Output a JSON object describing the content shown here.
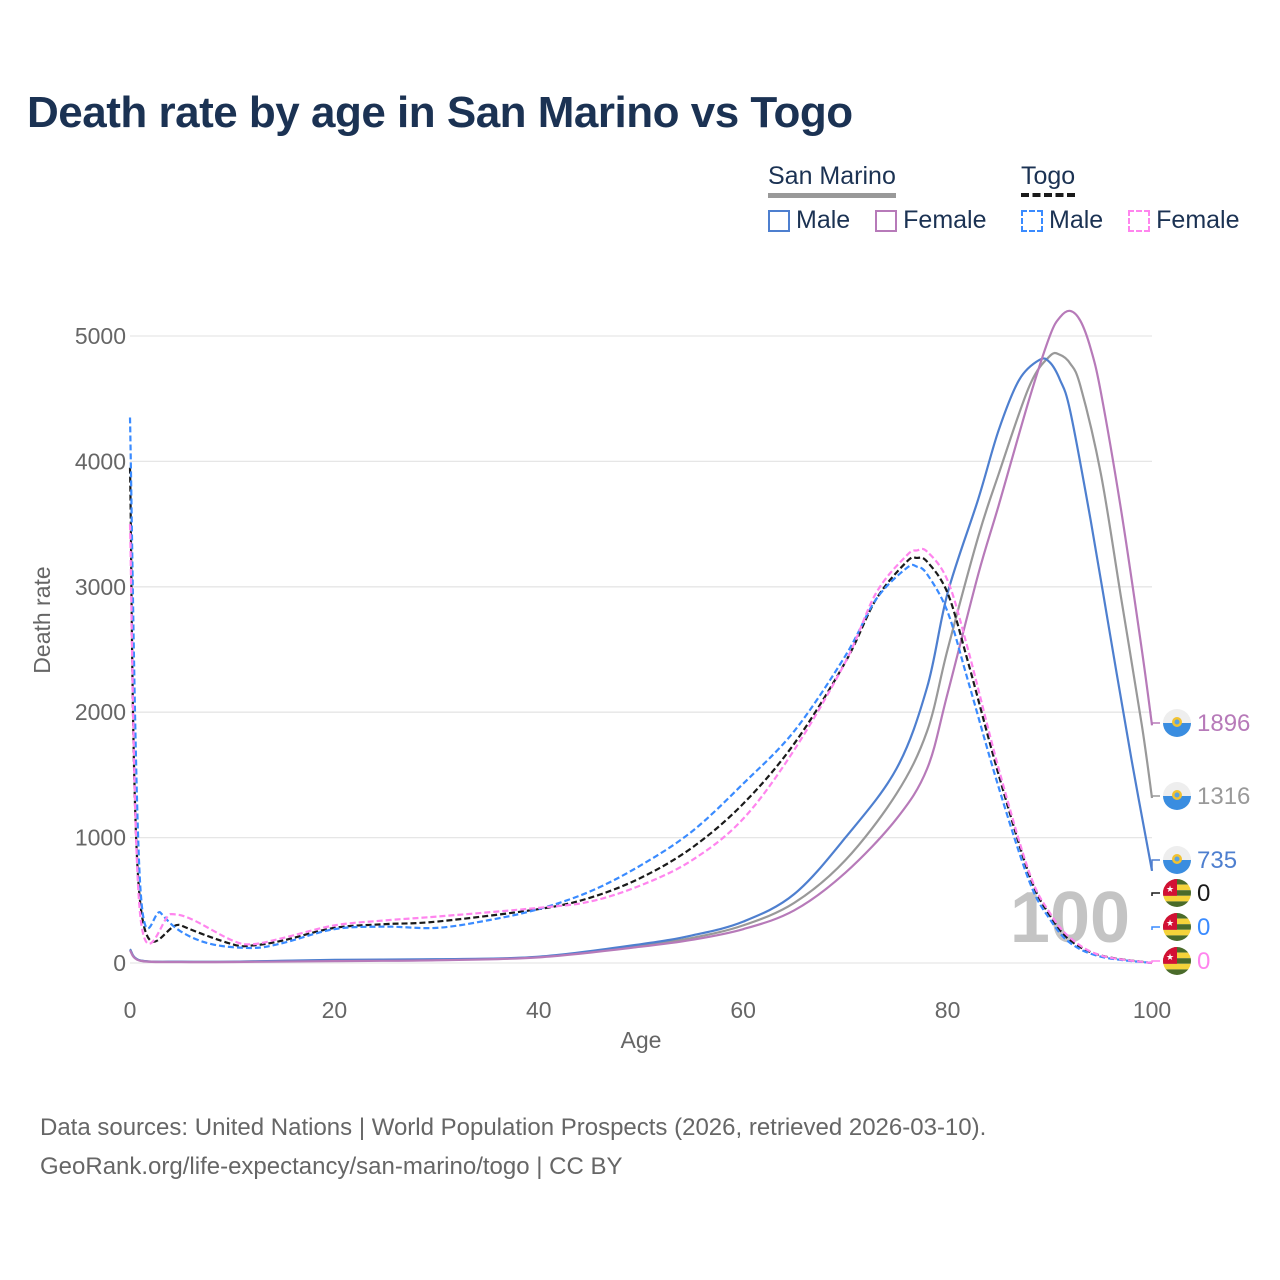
{
  "title": "Death rate by age in San Marino vs Togo",
  "legend": {
    "groups": [
      {
        "name": "San Marino",
        "items": [
          {
            "label": "Male",
            "color": "#4e7fcf",
            "dash": false
          },
          {
            "label": "Female",
            "color": "#b77ab9",
            "dash": false
          }
        ]
      },
      {
        "name": "Togo",
        "items": [
          {
            "label": "Male",
            "color": "#3a8bff",
            "dash": true
          },
          {
            "label": "Female",
            "color": "#ff85ee",
            "dash": true
          }
        ]
      }
    ]
  },
  "watermark": "100",
  "source": {
    "line1": "Data sources: United Nations | World Population Prospects (2026, retrieved 2026-03-10).",
    "line2": "GeoRank.org/life-expectancy/san-marino/togo | CC BY"
  },
  "end_labels": [
    {
      "country": "San Marino",
      "series": "Female",
      "value": "1896",
      "color": "#b77ab9"
    },
    {
      "country": "San Marino",
      "series": "Total",
      "value": "1316",
      "color": "#999999"
    },
    {
      "country": "San Marino",
      "series": "Male",
      "value": "735",
      "color": "#4e7fcf"
    },
    {
      "country": "Togo",
      "series": "Total",
      "value": "0",
      "color": "#1a1a1a"
    },
    {
      "country": "Togo",
      "series": "Male",
      "value": "0",
      "color": "#3a8bff"
    },
    {
      "country": "Togo",
      "series": "Female",
      "value": "0",
      "color": "#ff85ee"
    }
  ],
  "chart_data": {
    "type": "line",
    "title": "Death rate by age in San Marino vs Togo",
    "xlabel": "Age",
    "ylabel": "Death rate",
    "xlim": [
      0,
      100
    ],
    "ylim": [
      0,
      5000
    ],
    "xticks": [
      0,
      20,
      40,
      60,
      80,
      100
    ],
    "yticks": [
      0,
      1000,
      2000,
      3000,
      4000,
      5000
    ],
    "grid": true,
    "legend_position": "top-right",
    "series": [
      {
        "name": "San Marino Total",
        "color": "#999999",
        "dash": false,
        "points": [
          [
            0,
            110
          ],
          [
            1,
            20
          ],
          [
            5,
            10
          ],
          [
            10,
            10
          ],
          [
            20,
            22
          ],
          [
            30,
            28
          ],
          [
            40,
            48
          ],
          [
            50,
            140
          ],
          [
            55,
            200
          ],
          [
            60,
            300
          ],
          [
            65,
            480
          ],
          [
            70,
            820
          ],
          [
            75,
            1350
          ],
          [
            78,
            1850
          ],
          [
            80,
            2500
          ],
          [
            83,
            3400
          ],
          [
            85,
            3900
          ],
          [
            88,
            4600
          ],
          [
            90,
            4840
          ],
          [
            91,
            4850
          ],
          [
            92,
            4780
          ],
          [
            93,
            4600
          ],
          [
            95,
            3900
          ],
          [
            97,
            2900
          ],
          [
            99,
            1900
          ],
          [
            100,
            1316
          ]
        ]
      },
      {
        "name": "San Marino Male",
        "color": "#4e7fcf",
        "dash": false,
        "points": [
          [
            0,
            110
          ],
          [
            1,
            20
          ],
          [
            5,
            10
          ],
          [
            10,
            10
          ],
          [
            20,
            25
          ],
          [
            30,
            30
          ],
          [
            40,
            50
          ],
          [
            50,
            150
          ],
          [
            55,
            220
          ],
          [
            60,
            330
          ],
          [
            65,
            550
          ],
          [
            70,
            1000
          ],
          [
            75,
            1550
          ],
          [
            78,
            2200
          ],
          [
            80,
            2950
          ],
          [
            83,
            3700
          ],
          [
            85,
            4250
          ],
          [
            87,
            4650
          ],
          [
            89,
            4810
          ],
          [
            90,
            4790
          ],
          [
            91,
            4650
          ],
          [
            92,
            4400
          ],
          [
            94,
            3530
          ],
          [
            96,
            2570
          ],
          [
            98,
            1620
          ],
          [
            100,
            735
          ]
        ]
      },
      {
        "name": "San Marino Female",
        "color": "#b77ab9",
        "dash": false,
        "points": [
          [
            0,
            100
          ],
          [
            1,
            18
          ],
          [
            5,
            8
          ],
          [
            10,
            8
          ],
          [
            20,
            15
          ],
          [
            30,
            22
          ],
          [
            40,
            45
          ],
          [
            50,
            130
          ],
          [
            55,
            185
          ],
          [
            60,
            270
          ],
          [
            65,
            420
          ],
          [
            70,
            720
          ],
          [
            75,
            1150
          ],
          [
            78,
            1550
          ],
          [
            80,
            2150
          ],
          [
            83,
            3100
          ],
          [
            85,
            3650
          ],
          [
            88,
            4500
          ],
          [
            90,
            5000
          ],
          [
            91,
            5150
          ],
          [
            92,
            5200
          ],
          [
            93,
            5120
          ],
          [
            94,
            4900
          ],
          [
            95,
            4550
          ],
          [
            97,
            3600
          ],
          [
            99,
            2500
          ],
          [
            100,
            1896
          ]
        ]
      },
      {
        "name": "Togo Total",
        "color": "#1a1a1a",
        "dash": true,
        "points": [
          [
            0,
            3950
          ],
          [
            1,
            480
          ],
          [
            5,
            300
          ],
          [
            10,
            150
          ],
          [
            12,
            140
          ],
          [
            15,
            180
          ],
          [
            20,
            280
          ],
          [
            25,
            310
          ],
          [
            30,
            330
          ],
          [
            40,
            430
          ],
          [
            45,
            520
          ],
          [
            50,
            680
          ],
          [
            55,
            920
          ],
          [
            60,
            1270
          ],
          [
            65,
            1750
          ],
          [
            70,
            2400
          ],
          [
            73,
            2900
          ],
          [
            76,
            3200
          ],
          [
            77,
            3230
          ],
          [
            78,
            3200
          ],
          [
            80,
            2950
          ],
          [
            82,
            2400
          ],
          [
            85,
            1500
          ],
          [
            88,
            700
          ],
          [
            90,
            380
          ],
          [
            92,
            180
          ],
          [
            95,
            60
          ],
          [
            100,
            0
          ]
        ]
      },
      {
        "name": "Togo Male",
        "color": "#3a8bff",
        "dash": true,
        "points": [
          [
            0,
            4350
          ],
          [
            1,
            620
          ],
          [
            3,
            400
          ],
          [
            5,
            250
          ],
          [
            8,
            150
          ],
          [
            12,
            120
          ],
          [
            15,
            160
          ],
          [
            20,
            270
          ],
          [
            25,
            290
          ],
          [
            30,
            280
          ],
          [
            35,
            340
          ],
          [
            40,
            430
          ],
          [
            45,
            570
          ],
          [
            50,
            780
          ],
          [
            55,
            1050
          ],
          [
            60,
            1430
          ],
          [
            65,
            1850
          ],
          [
            70,
            2450
          ],
          [
            73,
            2900
          ],
          [
            76,
            3150
          ],
          [
            77,
            3160
          ],
          [
            78,
            3100
          ],
          [
            80,
            2800
          ],
          [
            82,
            2250
          ],
          [
            85,
            1400
          ],
          [
            88,
            650
          ],
          [
            90,
            350
          ],
          [
            92,
            160
          ],
          [
            95,
            50
          ],
          [
            100,
            0
          ]
        ]
      },
      {
        "name": "Togo Female",
        "color": "#ff85ee",
        "dash": true,
        "points": [
          [
            0,
            3500
          ],
          [
            1,
            380
          ],
          [
            4,
            390
          ],
          [
            6,
            350
          ],
          [
            10,
            180
          ],
          [
            12,
            150
          ],
          [
            15,
            200
          ],
          [
            20,
            300
          ],
          [
            25,
            340
          ],
          [
            30,
            370
          ],
          [
            40,
            440
          ],
          [
            45,
            490
          ],
          [
            50,
            620
          ],
          [
            55,
            820
          ],
          [
            60,
            1150
          ],
          [
            65,
            1700
          ],
          [
            70,
            2400
          ],
          [
            73,
            2950
          ],
          [
            76,
            3250
          ],
          [
            77,
            3290
          ],
          [
            78,
            3280
          ],
          [
            80,
            3050
          ],
          [
            82,
            2500
          ],
          [
            85,
            1550
          ],
          [
            88,
            720
          ],
          [
            90,
            400
          ],
          [
            92,
            200
          ],
          [
            95,
            60
          ],
          [
            100,
            0
          ]
        ]
      }
    ]
  }
}
